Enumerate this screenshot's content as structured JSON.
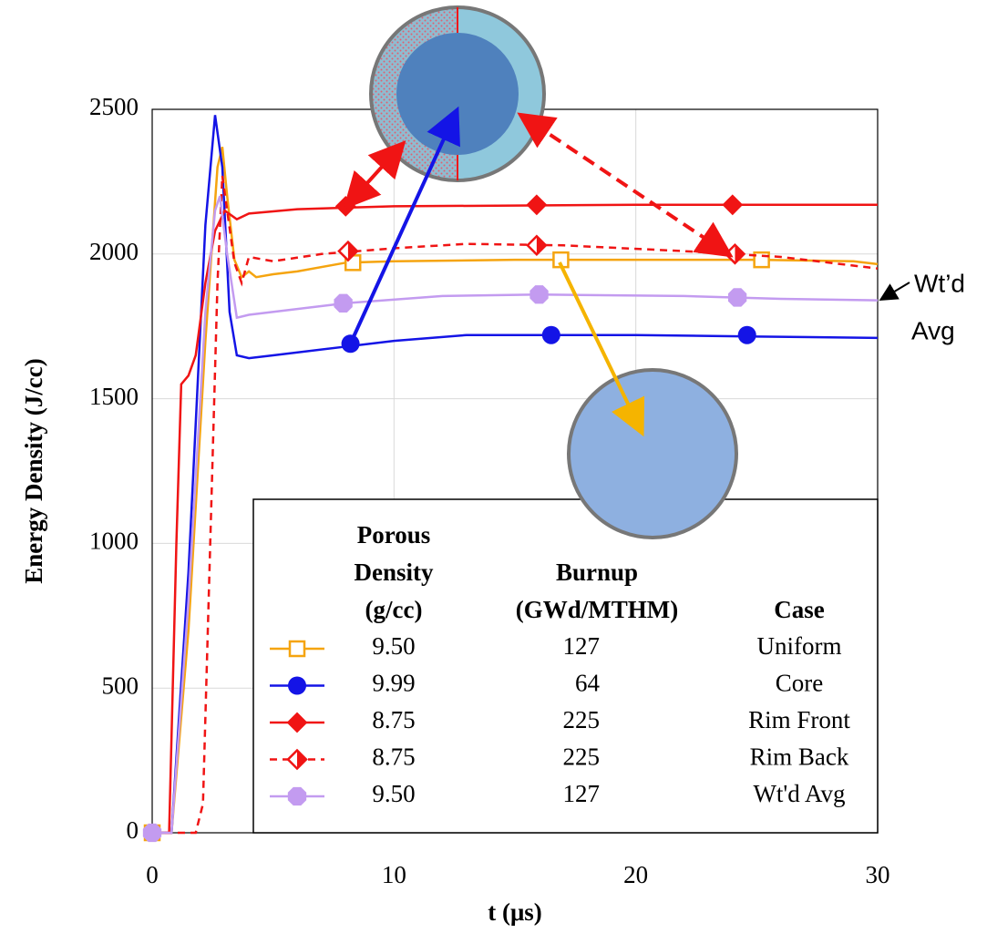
{
  "chart_data": {
    "type": "line",
    "x_label": "t (μs)",
    "y_label": "Energy Density (J/cc)",
    "xlim": [
      0,
      30
    ],
    "xticks": [
      0,
      10,
      20,
      30
    ],
    "ylim": [
      0,
      2500
    ],
    "yticks": [
      0,
      500,
      1000,
      1500,
      2000,
      2500
    ],
    "grid": true,
    "legend": {
      "density_header": [
        "Porous",
        "Density",
        "(g/cc)"
      ],
      "burnup_header": [
        "Burnup",
        "(GWd/MTHM)"
      ],
      "case_header": "Case",
      "corner": "lower right"
    },
    "annotation": [
      "Wt’d",
      "Avg"
    ],
    "series": [
      {
        "name": "Uniform",
        "density": "9.50",
        "burnup": "127",
        "color": "#f5a40f",
        "marker": "square",
        "dash": false,
        "x": [
          0,
          0.8,
          1.5,
          2.2,
          2.7,
          2.9,
          3.1,
          3.4,
          3.7,
          4,
          4.3,
          5,
          6,
          8,
          10,
          15,
          20,
          25,
          29,
          30
        ],
        "values": [
          0,
          0,
          700,
          1700,
          2300,
          2370,
          2200,
          1980,
          1920,
          1940,
          1920,
          1930,
          1940,
          1970,
          1975,
          1980,
          1980,
          1980,
          1975,
          1965
        ],
        "marker_x": [
          0,
          8.3,
          16.9,
          25.2
        ],
        "marker_values": [
          0,
          1970,
          1980,
          1980
        ]
      },
      {
        "name": "Core",
        "density": "9.99",
        "burnup": "64",
        "color": "#1414e6",
        "marker": "circle",
        "dash": false,
        "x": [
          0,
          0.8,
          1.5,
          2.2,
          2.6,
          2.9,
          3.2,
          3.5,
          4,
          5,
          8,
          10,
          13,
          20,
          25,
          30
        ],
        "values": [
          0,
          0,
          900,
          2100,
          2480,
          2300,
          1800,
          1650,
          1640,
          1650,
          1680,
          1700,
          1720,
          1720,
          1715,
          1710
        ],
        "marker_x": [
          8.2,
          16.5,
          24.6
        ],
        "marker_values": [
          1690,
          1720,
          1720
        ]
      },
      {
        "name": "Rim Front",
        "density": "8.75",
        "burnup": "225",
        "color": "#f01414",
        "marker": "diamond",
        "dash": false,
        "x": [
          0,
          0.7,
          1,
          1.2,
          1.5,
          1.8,
          2.2,
          2.6,
          3,
          3.5,
          4,
          6,
          10,
          20,
          30
        ],
        "values": [
          0,
          0,
          1000,
          1550,
          1580,
          1650,
          1900,
          2080,
          2150,
          2120,
          2140,
          2155,
          2165,
          2170,
          2170
        ],
        "marker_x": [
          8.0,
          15.9,
          24.0
        ],
        "marker_values": [
          2165,
          2170,
          2170
        ]
      },
      {
        "name": "Rim Back",
        "density": "8.75",
        "burnup": "225",
        "color": "#f01414",
        "marker": "half-diamond",
        "dash": true,
        "x": [
          0,
          1.8,
          2.1,
          2.4,
          2.7,
          2.9,
          3.1,
          3.4,
          3.7,
          4,
          5,
          7,
          10,
          13,
          17,
          22,
          26,
          30
        ],
        "values": [
          0,
          0,
          100,
          1000,
          1900,
          2270,
          2150,
          1970,
          1900,
          1990,
          1975,
          2000,
          2020,
          2035,
          2030,
          2010,
          1990,
          1950
        ],
        "marker_x": [
          8.1,
          15.9,
          24.1
        ],
        "marker_values": [
          2010,
          2030,
          2000
        ]
      },
      {
        "name": "Wt'd Avg",
        "density": "9.50",
        "burnup": "127",
        "color": "#c39bf0",
        "marker": "octagon",
        "dash": false,
        "x": [
          0,
          0.8,
          1.5,
          2.2,
          2.6,
          2.8,
          3.1,
          3.5,
          4,
          6,
          8,
          12,
          16,
          22,
          26,
          30
        ],
        "values": [
          0,
          0,
          800,
          1800,
          2150,
          2200,
          2000,
          1780,
          1790,
          1810,
          1830,
          1855,
          1860,
          1855,
          1845,
          1840
        ],
        "marker_x": [
          0,
          7.9,
          16,
          24.2
        ],
        "marker_values": [
          0,
          1830,
          1860,
          1850
        ]
      }
    ]
  }
}
